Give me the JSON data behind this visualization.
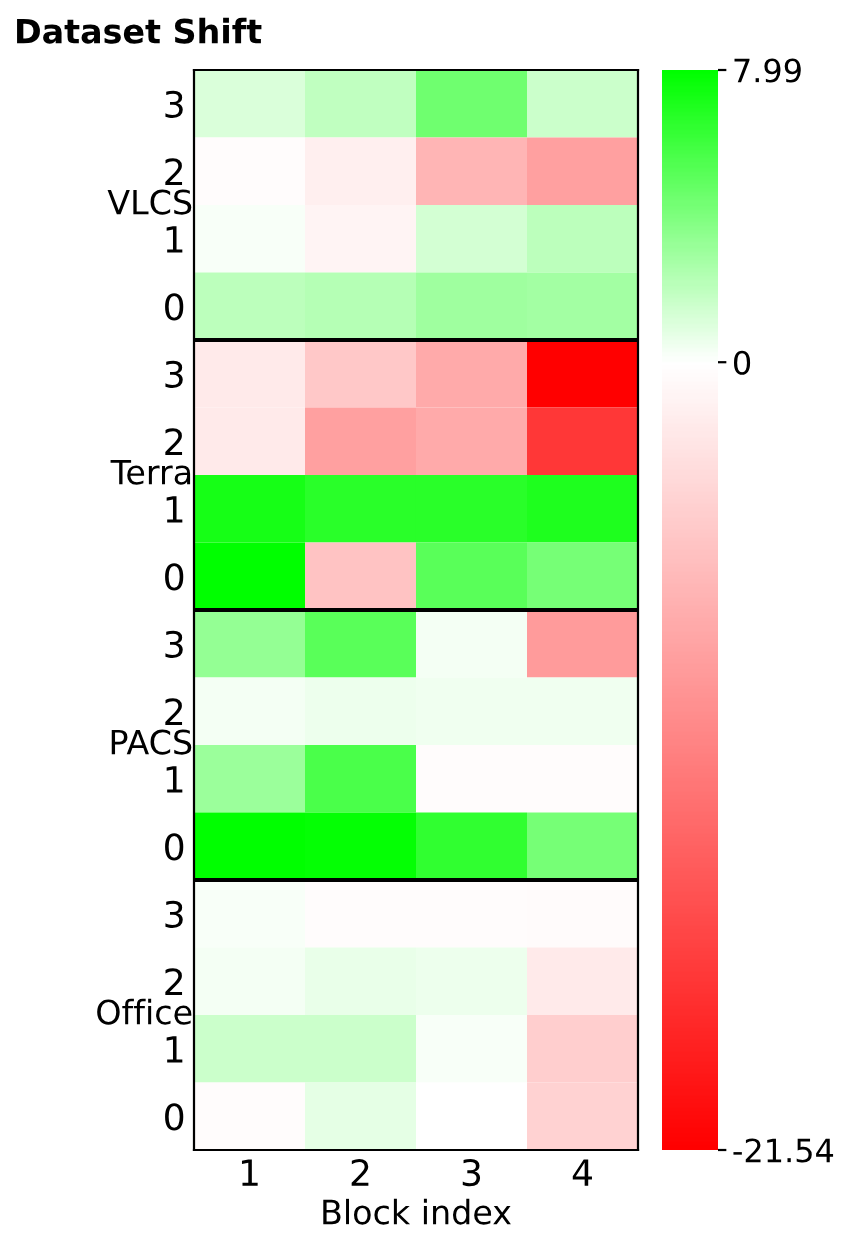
{
  "chart_data": {
    "type": "heatmap",
    "title": "Dataset Shift",
    "xlabel": "Block index",
    "categories": [
      "1",
      "2",
      "3",
      "4"
    ],
    "y_categories": [
      "3",
      "2",
      "1",
      "0",
      "3",
      "2",
      "1",
      "0",
      "3",
      "2",
      "1",
      "0",
      "3",
      "2",
      "1",
      "0"
    ],
    "cells": [
      [
        1.1,
        1.9,
        4.5,
        1.6
      ],
      [
        -0.3,
        -1.4,
        -6.3,
        -8.0
      ],
      [
        0.15,
        -1.0,
        1.3,
        2.0
      ],
      [
        2.0,
        2.3,
        3.0,
        2.8
      ],
      [
        -1.7,
        -4.6,
        -7.2,
        -21.54
      ],
      [
        -1.7,
        -8.0,
        -7.2,
        -16.9
      ],
      [
        7.2,
        6.7,
        6.7,
        7.0
      ],
      [
        7.99,
        -5.1,
        5.2,
        4.2
      ],
      [
        3.3,
        5.2,
        0.3,
        -8.4
      ],
      [
        0.3,
        0.5,
        0.4,
        0.4
      ],
      [
        3.1,
        5.6,
        -0.3,
        -0.3
      ],
      [
        7.9,
        7.8,
        6.4,
        4.2
      ],
      [
        0.2,
        -0.2,
        -0.2,
        -0.4
      ],
      [
        0.3,
        0.7,
        0.5,
        -1.7
      ],
      [
        1.6,
        1.6,
        0.2,
        -4.2
      ],
      [
        -0.3,
        0.8,
        0.0,
        -3.8
      ]
    ],
    "clim": [
      -21.54,
      7.99
    ],
    "cticks": [
      7.99,
      0,
      -21.54
    ],
    "annotations": [
      "VLCS",
      "Terra",
      "PACS",
      "Office"
    ]
  }
}
